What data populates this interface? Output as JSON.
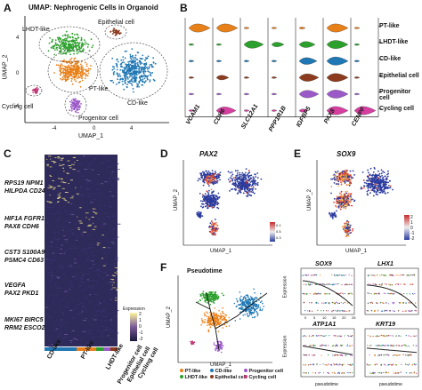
{
  "panels": {
    "A": {
      "label": "A",
      "title": "UMAP: Nephrogenic Cells in Organoid",
      "xlabel": "UMAP_1",
      "ylabel": "UMAP_2",
      "x_ticks": [
        "-4",
        "0",
        "4"
      ],
      "y_ticks": [
        "4",
        "0",
        "-4"
      ],
      "clusters": [
        {
          "name": "LHDT-like",
          "color": "#2ca02c"
        },
        {
          "name": "Epithelial cell",
          "color": "#8c3b1e"
        },
        {
          "name": "PT-like",
          "color": "#e8801a"
        },
        {
          "name": "CD-like",
          "color": "#1f77b4"
        },
        {
          "name": "Cycling cell",
          "color": "#c03a78"
        },
        {
          "name": "Progenitor cell",
          "color": "#9b59c8"
        }
      ]
    },
    "B": {
      "label": "B",
      "genes": [
        "VCAM1",
        "CDH6",
        "SLC12A1",
        "PPP1R1B",
        "IGFBP5",
        "PAX8",
        "CENPF"
      ],
      "rows": [
        "PT-like",
        "LHDT-like",
        "CD-like",
        "Epithelial cell",
        "Progenitor cell",
        "Cycling cell"
      ],
      "row_colors": [
        "#e8801a",
        "#2ca02c",
        "#1f77b4",
        "#8c3b1e",
        "#9b59c8",
        "#d63fa0"
      ]
    },
    "C": {
      "label": "C",
      "gene_groups": [
        [
          "RPS19 NPM1",
          "HILPDA CD24"
        ],
        [
          "HIF1A FGFR1",
          "PAX8 CDH6"
        ],
        [
          "CST3 S100A9",
          "PSMC4 CD63"
        ],
        [
          "VEGFA",
          "PAX2 PKD1"
        ],
        [
          "MKI67 BIRC5",
          "RRM2 ESCO2"
        ]
      ],
      "legend_title": "Expression",
      "legend_ticks": [
        "2",
        "1",
        "0",
        "-1",
        "-2"
      ],
      "column_groups": [
        "CD-like",
        "PT-like",
        "LHDT-like",
        "Progenitor cell",
        "Epithelial cell",
        "Cycling cell"
      ],
      "column_colors": [
        "#1f77b4",
        "#e8801a",
        "#2ca02c",
        "#9b59c8",
        "#8c3b1e",
        "#d63fa0"
      ]
    },
    "D": {
      "label": "D",
      "title": "PAX2",
      "xlabel": "UMAP_1",
      "ylabel": "UMAP_2",
      "legend_ticks": [
        "0.1",
        "0.5",
        "0.3"
      ]
    },
    "E": {
      "label": "E",
      "title": "SOX9",
      "xlabel": "UMAP_1",
      "ylabel": "UMAP_2",
      "legend_ticks": [
        "2",
        "1",
        "0",
        "-1",
        "-2"
      ]
    },
    "F": {
      "label": "F",
      "title": "Pseudotime",
      "xlabel": "UMAP_1",
      "ylabel": "UMAP_2",
      "legend": [
        "PT-like",
        "LHDT-like",
        "CD-like",
        "Epithelial cell",
        "Progenitor cell",
        "Cycling cell"
      ],
      "legend_colors": [
        "#e8801a",
        "#2ca02c",
        "#1f77b4",
        "#8c3b1e",
        "#9b59c8",
        "#c03a78"
      ],
      "subplots": [
        {
          "gene": "SOX9"
        },
        {
          "gene": "LHX1"
        },
        {
          "gene": "ATP1A1"
        },
        {
          "gene": "KRT19"
        }
      ],
      "sub_ylabel": "Expression",
      "sub_xlabel": "pseudotime",
      "sub_x_ticks": [
        "0",
        "5",
        "10",
        "15",
        "20",
        "25"
      ]
    }
  }
}
